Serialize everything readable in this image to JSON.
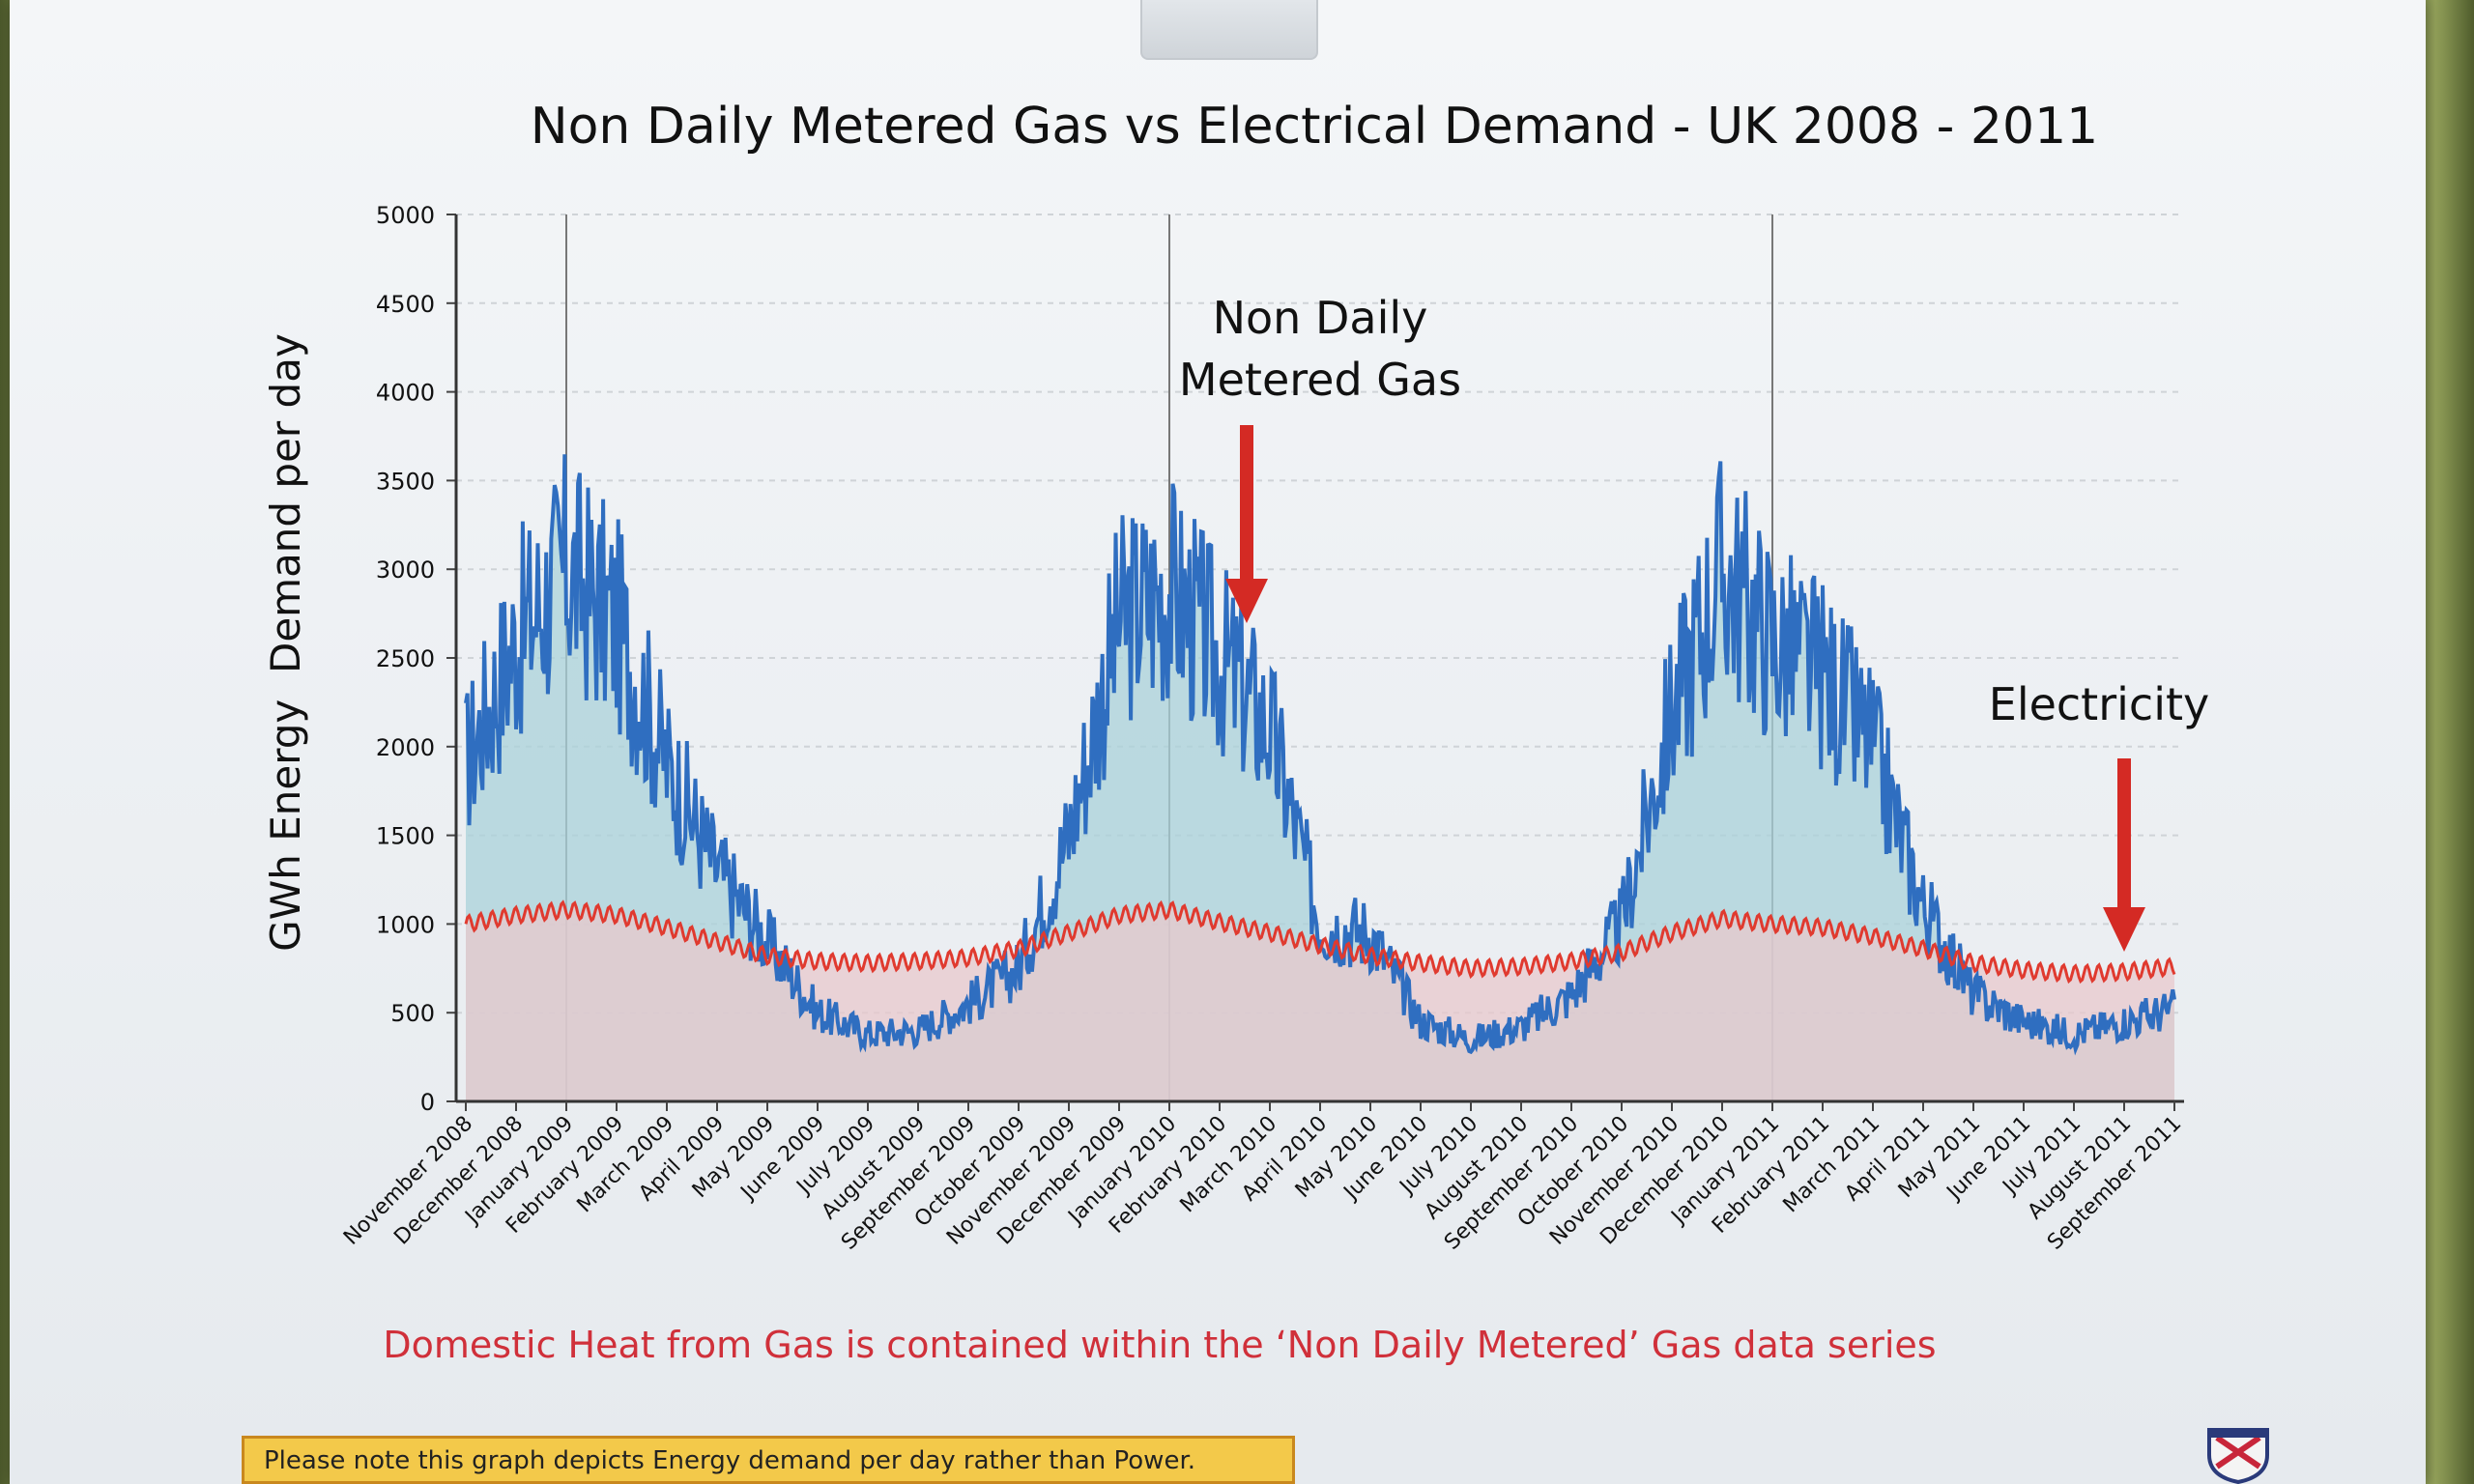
{
  "chart_data": {
    "type": "area",
    "title": "Non Daily Metered Gas vs Electrical Demand - UK 2008 - 2011",
    "xlabel": "",
    "ylabel": "GWh Energy  Demand per day",
    "ylim": [
      0,
      5000
    ],
    "yticks": [
      0,
      500,
      1000,
      1500,
      2000,
      2500,
      3000,
      3500,
      4000,
      4500,
      5000
    ],
    "grid": true,
    "categories": [
      "November 2008",
      "December 2008",
      "January 2009",
      "February 2009",
      "March 2009",
      "April 2009",
      "May 2009",
      "June 2009",
      "July 2009",
      "August 2009",
      "September 2009",
      "October 2009",
      "November 2009",
      "December 2009",
      "January 2010",
      "February 2010",
      "March 2010",
      "April 2010",
      "May 2010",
      "June 2010",
      "July 2010",
      "August 2010",
      "September 2010",
      "October 2010",
      "November 2010",
      "December 2010",
      "January 2011",
      "February 2011",
      "March 2011",
      "April 2011",
      "May 2011",
      "June 2011",
      "July 2011",
      "August 2011",
      "September 2011"
    ],
    "series": [
      {
        "name": "Non Daily Metered Gas",
        "color": "#2f6ec0",
        "fill": "#a9d2da",
        "values": [
          1900,
          2600,
          3000,
          2700,
          1900,
          1300,
          900,
          500,
          380,
          400,
          550,
          750,
          1500,
          2700,
          2900,
          2500,
          2100,
          1000,
          950,
          450,
          350,
          420,
          600,
          1000,
          2200,
          3000,
          2600,
          2400,
          2000,
          1100,
          600,
          450,
          380,
          450,
          520
        ]
      },
      {
        "name": "Electricity",
        "color": "#e03a2f",
        "fill": "#e8c8cc",
        "values": [
          1000,
          1050,
          1080,
          1050,
          980,
          900,
          820,
          790,
          780,
          790,
          810,
          860,
          950,
          1050,
          1080,
          1010,
          950,
          880,
          820,
          780,
          750,
          760,
          790,
          840,
          950,
          1030,
          1000,
          980,
          930,
          860,
          780,
          740,
          720,
          730,
          760
        ]
      }
    ],
    "annotations": [
      {
        "text": "Non Daily\nMetered Gas",
        "arrow_color": "#d42a24",
        "target_category": "February 2010"
      },
      {
        "text": "Electricity",
        "arrow_color": "#d42a24",
        "target_category": "August 2011"
      }
    ]
  },
  "footnote": "Domestic Heat from Gas is contained within the ‘Non Daily Metered’ Gas data series",
  "note": "Please note this graph depicts Energy demand per day rather than Power."
}
